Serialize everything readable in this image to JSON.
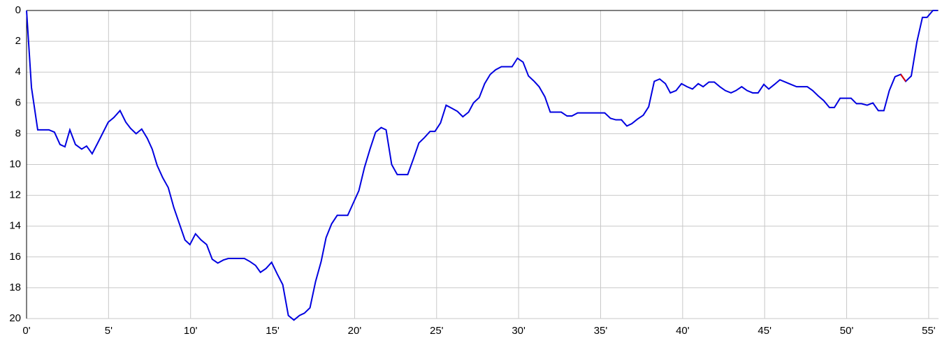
{
  "chart_data": {
    "type": "line",
    "xlim": [
      0,
      55.6
    ],
    "ylim": [
      0,
      20
    ],
    "y_inverted": true,
    "grid": true,
    "xticks": [
      {
        "value": 0,
        "label": "0'"
      },
      {
        "value": 5,
        "label": "5'"
      },
      {
        "value": 10,
        "label": "10'"
      },
      {
        "value": 15,
        "label": "15'"
      },
      {
        "value": 20,
        "label": "20'"
      },
      {
        "value": 25,
        "label": "25'"
      },
      {
        "value": 30,
        "label": "30'"
      },
      {
        "value": 35,
        "label": "35'"
      },
      {
        "value": 40,
        "label": "40'"
      },
      {
        "value": 45,
        "label": "45'"
      },
      {
        "value": 50,
        "label": "50'"
      },
      {
        "value": 55,
        "label": "55'"
      }
    ],
    "yticks": [
      0,
      2,
      4,
      6,
      8,
      10,
      12,
      14,
      16,
      18,
      20
    ],
    "series": [
      {
        "color": "#0000e0",
        "x": [
          0,
          0.3,
          0.68,
          1.36,
          1.7,
          2.04,
          2.34,
          2.64,
          2.98,
          3.36,
          3.66,
          4.0,
          4.34,
          4.98,
          5.32,
          5.7,
          6.05,
          6.34,
          6.68,
          7.02,
          7.36,
          7.66,
          7.96,
          8.3,
          8.64,
          8.98,
          9.32,
          9.66,
          9.96,
          10.3,
          10.64,
          10.98,
          11.32,
          11.66,
          12.0,
          12.3,
          13.28,
          13.62,
          13.96,
          14.26,
          14.6,
          14.94,
          15.28,
          15.62,
          15.96,
          16.3,
          16.64,
          16.94,
          17.28,
          17.62,
          17.96,
          18.26,
          18.6,
          18.94,
          19.58,
          19.92,
          20.26,
          20.6,
          20.94,
          21.28,
          21.62,
          21.92,
          22.26,
          22.6,
          23.24,
          23.58,
          23.92,
          24.26,
          24.6,
          24.9,
          25.24,
          25.58,
          25.93,
          26.27,
          26.6,
          26.95,
          27.25,
          27.6,
          27.93,
          28.27,
          28.6,
          28.95,
          29.6,
          29.93,
          30.27,
          30.6,
          30.95,
          31.25,
          31.6,
          31.93,
          32.6,
          32.95,
          33.25,
          33.6,
          35.25,
          35.6,
          35.93,
          36.27,
          36.6,
          36.9,
          37.25,
          37.6,
          37.93,
          38.27,
          38.6,
          38.95,
          39.25,
          39.6,
          39.93,
          40.27,
          40.6,
          40.95,
          41.25,
          41.6,
          41.93,
          42.27,
          42.6,
          42.95,
          43.25,
          43.6,
          43.93,
          44.27,
          44.6,
          44.95,
          45.25,
          45.6,
          45.93,
          46.27,
          46.6,
          46.95,
          47.6,
          47.93,
          48.27,
          48.6,
          48.95,
          49.25,
          49.6,
          50.27,
          50.6,
          50.9,
          51.25,
          51.6,
          51.93,
          52.27,
          52.6,
          52.95,
          53.3,
          53.6,
          53.94,
          54.28,
          54.62,
          54.9,
          55.26,
          55.55
        ],
        "values": [
          0,
          5,
          7.75,
          7.75,
          7.9,
          8.7,
          8.85,
          7.75,
          8.7,
          9.0,
          8.8,
          9.3,
          8.6,
          7.25,
          6.95,
          6.5,
          7.25,
          7.65,
          8.0,
          7.7,
          8.3,
          9.0,
          10.05,
          10.85,
          11.5,
          12.8,
          13.85,
          14.9,
          15.2,
          14.5,
          14.9,
          15.2,
          16.15,
          16.4,
          16.2,
          16.1,
          16.1,
          16.3,
          16.55,
          17.0,
          16.75,
          16.35,
          17.1,
          17.8,
          19.8,
          20.1,
          19.8,
          19.65,
          19.3,
          17.6,
          16.3,
          14.75,
          13.85,
          13.3,
          13.3,
          12.5,
          11.7,
          10.2,
          9.0,
          7.9,
          7.6,
          7.75,
          10.0,
          10.65,
          10.65,
          9.65,
          8.6,
          8.25,
          7.85,
          7.85,
          7.3,
          6.15,
          6.35,
          6.55,
          6.9,
          6.6,
          6.0,
          5.65,
          4.75,
          4.15,
          3.85,
          3.65,
          3.65,
          3.1,
          3.35,
          4.25,
          4.6,
          4.95,
          5.6,
          6.6,
          6.6,
          6.85,
          6.85,
          6.65,
          6.65,
          7.0,
          7.1,
          7.1,
          7.5,
          7.35,
          7.05,
          6.8,
          6.25,
          4.6,
          4.45,
          4.75,
          5.35,
          5.2,
          4.75,
          4.95,
          5.1,
          4.75,
          4.95,
          4.65,
          4.65,
          4.95,
          5.2,
          5.35,
          5.2,
          4.95,
          5.2,
          5.35,
          5.35,
          4.8,
          5.1,
          4.8,
          4.5,
          4.65,
          4.8,
          4.95,
          4.95,
          5.2,
          5.55,
          5.85,
          6.3,
          6.3,
          5.7,
          5.7,
          6.05,
          6.05,
          6.15,
          6.0,
          6.5,
          6.5,
          5.2,
          4.3,
          4.15,
          4.6,
          4.25,
          2.05,
          0.45,
          0.45,
          0,
          0
        ]
      },
      {
        "color": "#e00000",
        "x": [
          53.3,
          53.6
        ],
        "values": [
          4.15,
          4.6
        ]
      }
    ]
  }
}
